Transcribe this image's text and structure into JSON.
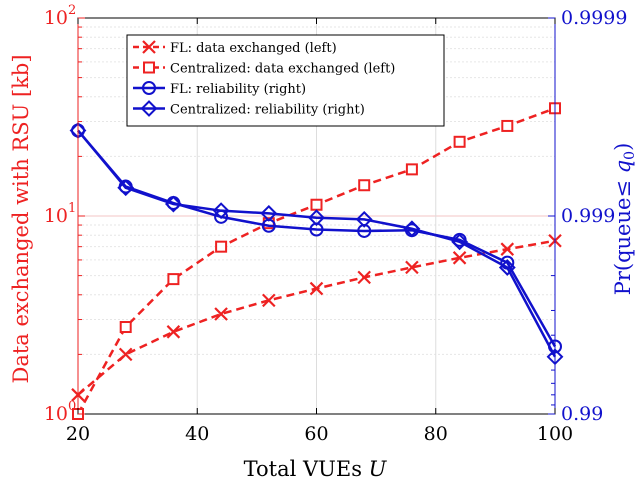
{
  "chart_data": {
    "type": "line",
    "xlabel": "Total VUEs U",
    "ylabel_left": "Data exchanged with RSU [kb]",
    "ylabel_right": "Pr(queue≤ q0)",
    "x": [
      20,
      28,
      36,
      44,
      52,
      60,
      68,
      76,
      84,
      92,
      100
    ],
    "xlim": [
      20,
      100
    ],
    "x_ticks": [
      "20",
      "40",
      "60",
      "80",
      "100"
    ],
    "y_left": {
      "scale": "log",
      "range": [
        1,
        100
      ],
      "ticks": [
        "10",
        "10",
        "10"
      ],
      "tick_exponents": [
        "0",
        "1",
        "2"
      ],
      "color": "#ee2222"
    },
    "y_right": {
      "scale": "reliability-log",
      "range": [
        0.99,
        0.9999
      ],
      "ticks": [
        "0.99",
        "0.999",
        "0.9999"
      ],
      "color": "#1111cc"
    },
    "grid": true,
    "legend_position": "top-center",
    "series": [
      {
        "name": "FL: data exchanged (left)",
        "axis": "left",
        "color": "#ee2222",
        "dash": true,
        "marker": "x",
        "values": [
          1.25,
          2.0,
          2.6,
          3.2,
          3.75,
          4.3,
          4.9,
          5.5,
          6.15,
          6.8,
          7.5
        ]
      },
      {
        "name": "Centralized: data exchanged (left)",
        "axis": "left",
        "color": "#ee2222",
        "dash": true,
        "marker": "square",
        "values": [
          1.0,
          2.75,
          4.8,
          7.0,
          9.2,
          11.4,
          14.3,
          17.2,
          23.7,
          28.5,
          35.0
        ]
      },
      {
        "name": "FL: reliability (right)",
        "axis": "right",
        "color": "#1111cc",
        "dash": false,
        "marker": "circle",
        "values": [
          0.99963,
          0.99929,
          0.99914,
          0.99899,
          0.99888,
          0.99883,
          0.99881,
          0.99882,
          0.99868,
          0.99828,
          0.99544
        ]
      },
      {
        "name": "Centralized: reliability (right)",
        "axis": "right",
        "color": "#1111cc",
        "dash": false,
        "marker": "diamond",
        "values": [
          0.99963,
          0.99928,
          0.99913,
          0.99906,
          0.99903,
          0.99898,
          0.99896,
          0.99884,
          0.99865,
          0.99818,
          0.99486
        ]
      }
    ]
  }
}
